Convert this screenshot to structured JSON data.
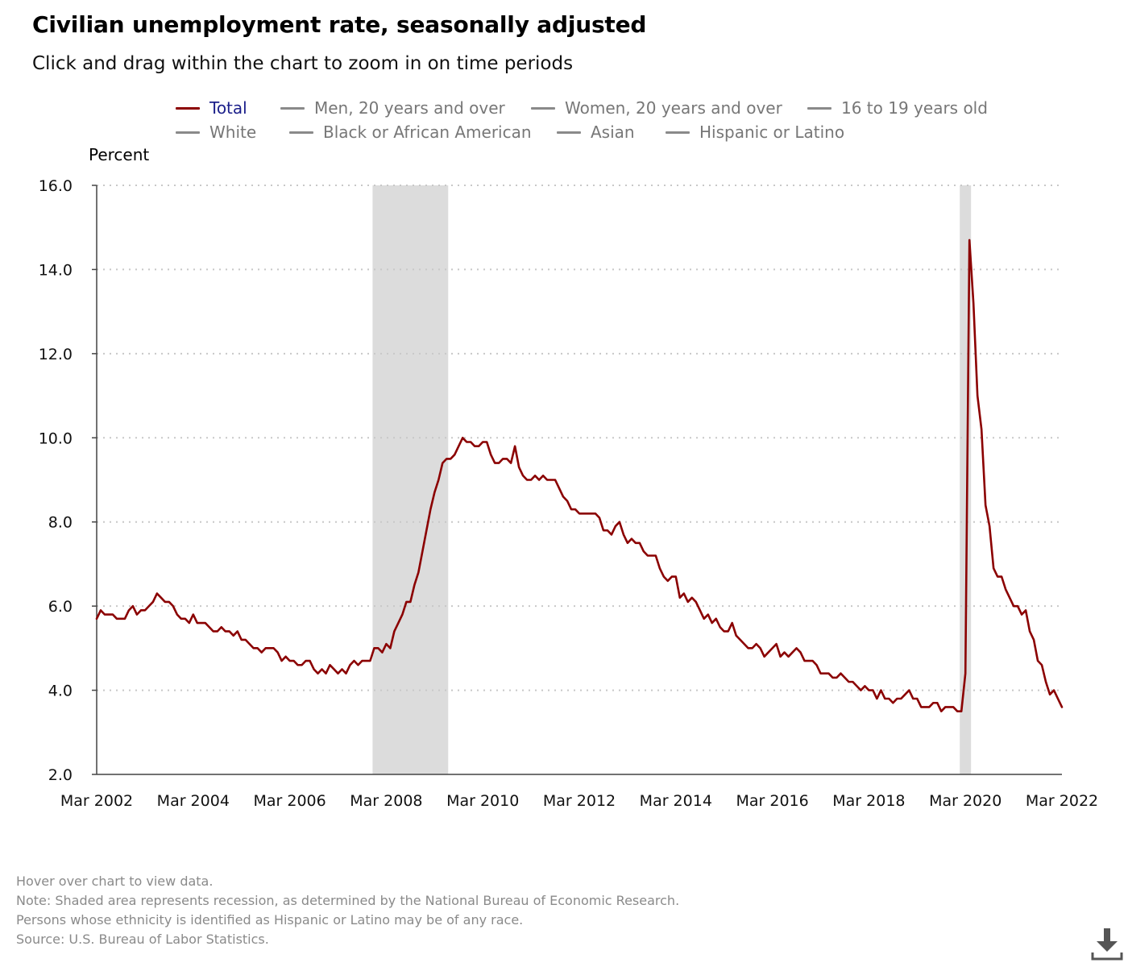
{
  "title": "Civilian unemployment rate, seasonally adjusted",
  "subtitle": "Click and drag within the chart to zoom in on time periods",
  "legend": {
    "rows": [
      [
        {
          "label": "Total",
          "active": true
        },
        {
          "label": "Men, 20 years and over",
          "active": false
        },
        {
          "label": "Women, 20 years and over",
          "active": false
        },
        {
          "label": "16 to 19 years old",
          "active": false
        }
      ],
      [
        {
          "label": "White",
          "active": false
        },
        {
          "label": "Black or African American",
          "active": false
        },
        {
          "label": "Asian",
          "active": false
        },
        {
          "label": "Hispanic or Latino",
          "active": false
        }
      ]
    ]
  },
  "notes": [
    "Hover over chart to view data.",
    "Note: Shaded area represents recession, as determined by the National Bureau of Economic Research.",
    "Persons whose ethnicity is identified as Hispanic or Latino may be of any race.",
    "Source: U.S. Bureau of Labor Statistics."
  ],
  "download_icon": "download-icon",
  "colors": {
    "total_series": "#8b0000",
    "inactive_series": "#8a8a8a",
    "active_legend_text": "#1b1f8a",
    "recession_shade": "#dcdcdc",
    "gridline": "#c8c8c8"
  },
  "chart_data": {
    "type": "line",
    "title": "Civilian unemployment rate, seasonally adjusted",
    "ylabel": "Percent",
    "xlabel": "",
    "ylim": [
      2.0,
      16.0
    ],
    "yticks": [
      "2.0",
      "4.0",
      "6.0",
      "8.0",
      "10.0",
      "12.0",
      "14.0",
      "16.0"
    ],
    "xlim": [
      "2002-03",
      "2022-03"
    ],
    "xticks": [
      "Mar 2002",
      "Mar 2004",
      "Mar 2006",
      "Mar 2008",
      "Mar 2010",
      "Mar 2012",
      "Mar 2014",
      "Mar 2016",
      "Mar 2018",
      "Mar 2020",
      "Mar 2022"
    ],
    "grid": "horizontal dotted",
    "legend_position": "top",
    "recessions": [
      {
        "start": "2007-12",
        "end": "2009-06"
      },
      {
        "start": "2020-02",
        "end": "2020-04"
      }
    ],
    "series": [
      {
        "name": "Total",
        "start": "2002-03",
        "frequency": "monthly",
        "values": [
          5.7,
          5.9,
          5.8,
          5.8,
          5.8,
          5.7,
          5.7,
          5.7,
          5.9,
          6.0,
          5.8,
          5.9,
          5.9,
          6.0,
          6.1,
          6.3,
          6.2,
          6.1,
          6.1,
          6.0,
          5.8,
          5.7,
          5.7,
          5.6,
          5.8,
          5.6,
          5.6,
          5.6,
          5.5,
          5.4,
          5.4,
          5.5,
          5.4,
          5.4,
          5.3,
          5.4,
          5.2,
          5.2,
          5.1,
          5.0,
          5.0,
          4.9,
          5.0,
          5.0,
          5.0,
          4.9,
          4.7,
          4.8,
          4.7,
          4.7,
          4.6,
          4.6,
          4.7,
          4.7,
          4.5,
          4.4,
          4.5,
          4.4,
          4.6,
          4.5,
          4.4,
          4.5,
          4.4,
          4.6,
          4.7,
          4.6,
          4.7,
          4.7,
          4.7,
          5.0,
          5.0,
          4.9,
          5.1,
          5.0,
          5.4,
          5.6,
          5.8,
          6.1,
          6.1,
          6.5,
          6.8,
          7.3,
          7.8,
          8.3,
          8.7,
          9.0,
          9.4,
          9.5,
          9.5,
          9.6,
          9.8,
          10.0,
          9.9,
          9.9,
          9.8,
          9.8,
          9.9,
          9.9,
          9.6,
          9.4,
          9.4,
          9.5,
          9.5,
          9.4,
          9.8,
          9.3,
          9.1,
          9.0,
          9.0,
          9.1,
          9.0,
          9.1,
          9.0,
          9.0,
          9.0,
          8.8,
          8.6,
          8.5,
          8.3,
          8.3,
          8.2,
          8.2,
          8.2,
          8.2,
          8.2,
          8.1,
          7.8,
          7.8,
          7.7,
          7.9,
          8.0,
          7.7,
          7.5,
          7.6,
          7.5,
          7.5,
          7.3,
          7.2,
          7.2,
          7.2,
          6.9,
          6.7,
          6.6,
          6.7,
          6.7,
          6.2,
          6.3,
          6.1,
          6.2,
          6.1,
          5.9,
          5.7,
          5.8,
          5.6,
          5.7,
          5.5,
          5.4,
          5.4,
          5.6,
          5.3,
          5.2,
          5.1,
          5.0,
          5.0,
          5.1,
          5.0,
          4.8,
          4.9,
          5.0,
          5.1,
          4.8,
          4.9,
          4.8,
          4.9,
          5.0,
          4.9,
          4.7,
          4.7,
          4.7,
          4.6,
          4.4,
          4.4,
          4.4,
          4.3,
          4.3,
          4.4,
          4.3,
          4.2,
          4.2,
          4.1,
          4.0,
          4.1,
          4.0,
          4.0,
          3.8,
          4.0,
          3.8,
          3.8,
          3.7,
          3.8,
          3.8,
          3.9,
          4.0,
          3.8,
          3.8,
          3.6,
          3.6,
          3.6,
          3.7,
          3.7,
          3.5,
          3.6,
          3.6,
          3.6,
          3.5,
          3.5,
          4.4,
          14.7,
          13.2,
          11.0,
          10.2,
          8.4,
          7.9,
          6.9,
          6.7,
          6.7,
          6.4,
          6.2,
          6.0,
          6.0,
          5.8,
          5.9,
          5.4,
          5.2,
          4.7,
          4.6,
          4.2,
          3.9,
          4.0,
          3.8,
          3.6
        ]
      }
    ]
  }
}
